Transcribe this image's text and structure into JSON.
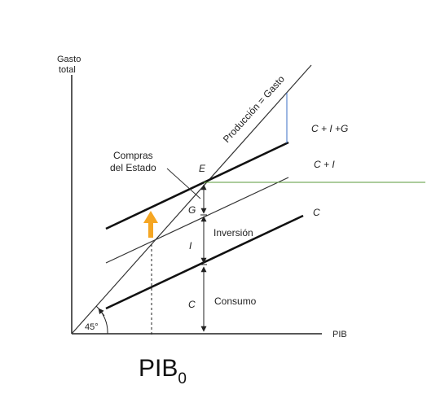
{
  "axis": {
    "y_label_line1": "Gasto",
    "y_label_line2": "total",
    "x_label": "PIB",
    "angle_label": "45°"
  },
  "lines": {
    "production_label": "Producción = Gasto",
    "cig_label": "C + I +G",
    "ci_label": "C + I",
    "c_label": "C"
  },
  "labels": {
    "equilibrium": "E",
    "gov_spending_line1": "Compras",
    "gov_spending_line2": "del Estado",
    "g_segment": "G",
    "i_segment": "I",
    "c_segment": "C",
    "investment": "Inversión",
    "consumption": "Consumo",
    "pib0_main": "PIB",
    "pib0_sub": "0"
  },
  "colors": {
    "ink": "#222222",
    "arrow": "#f5a623",
    "guide_green": "#5a9a3a",
    "guide_blue": "#3b6fc4"
  }
}
